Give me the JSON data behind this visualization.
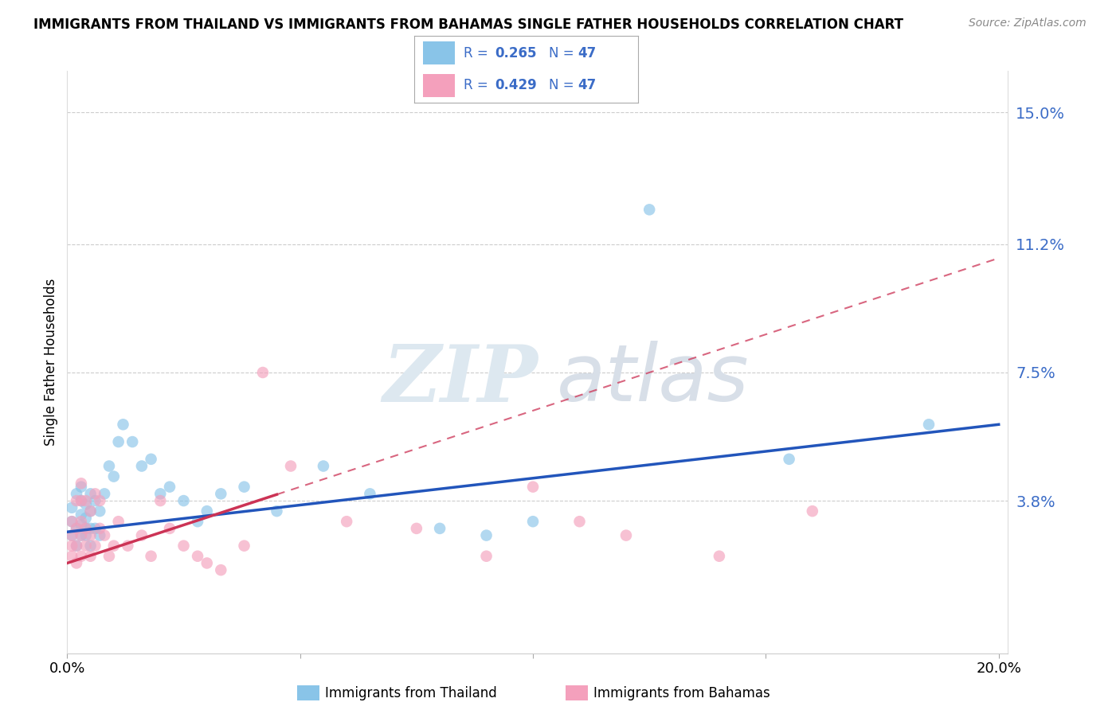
{
  "title": "IMMIGRANTS FROM THAILAND VS IMMIGRANTS FROM BAHAMAS SINGLE FATHER HOUSEHOLDS CORRELATION CHART",
  "source": "Source: ZipAtlas.com",
  "ylabel": "Single Father Households",
  "legend_label1": "Immigrants from Thailand",
  "legend_label2": "Immigrants from Bahamas",
  "R1": "0.265",
  "R2": "0.429",
  "N1": "47",
  "N2": "47",
  "xlim": [
    0.0,
    0.202
  ],
  "ylim": [
    -0.006,
    0.162
  ],
  "yticks": [
    0.038,
    0.075,
    0.112,
    0.15
  ],
  "ytick_labels": [
    "3.8%",
    "7.5%",
    "11.2%",
    "15.0%"
  ],
  "xticks": [
    0.0,
    0.05,
    0.1,
    0.15,
    0.2
  ],
  "xtick_labels": [
    "0.0%",
    "",
    "",
    "",
    "20.0%"
  ],
  "color_thailand": "#89C4E8",
  "color_bahamas": "#F4A0BC",
  "color_line_thailand": "#2255BB",
  "color_line_bahamas": "#CC3355",
  "line_thai_x0": 0.0,
  "line_thai_y0": 0.029,
  "line_thai_x1": 0.2,
  "line_thai_y1": 0.06,
  "line_bah_x0": 0.0,
  "line_bah_y0": 0.02,
  "line_bah_x1": 0.2,
  "line_bah_y1": 0.108,
  "line_bah_solid_end": 0.045,
  "thailand_x": [
    0.001,
    0.001,
    0.001,
    0.002,
    0.002,
    0.002,
    0.003,
    0.003,
    0.003,
    0.003,
    0.003,
    0.004,
    0.004,
    0.004,
    0.004,
    0.005,
    0.005,
    0.005,
    0.005,
    0.006,
    0.006,
    0.007,
    0.007,
    0.008,
    0.009,
    0.01,
    0.011,
    0.012,
    0.014,
    0.016,
    0.018,
    0.02,
    0.022,
    0.025,
    0.028,
    0.03,
    0.033,
    0.038,
    0.045,
    0.055,
    0.065,
    0.08,
    0.09,
    0.1,
    0.125,
    0.155,
    0.185
  ],
  "thailand_y": [
    0.028,
    0.032,
    0.036,
    0.025,
    0.03,
    0.04,
    0.028,
    0.031,
    0.034,
    0.038,
    0.042,
    0.028,
    0.03,
    0.033,
    0.037,
    0.025,
    0.03,
    0.035,
    0.04,
    0.03,
    0.038,
    0.028,
    0.035,
    0.04,
    0.048,
    0.045,
    0.055,
    0.06,
    0.055,
    0.048,
    0.05,
    0.04,
    0.042,
    0.038,
    0.032,
    0.035,
    0.04,
    0.042,
    0.035,
    0.048,
    0.04,
    0.03,
    0.028,
    0.032,
    0.122,
    0.05,
    0.06
  ],
  "bahamas_x": [
    0.001,
    0.001,
    0.001,
    0.001,
    0.002,
    0.002,
    0.002,
    0.002,
    0.003,
    0.003,
    0.003,
    0.003,
    0.003,
    0.004,
    0.004,
    0.004,
    0.005,
    0.005,
    0.005,
    0.006,
    0.006,
    0.007,
    0.007,
    0.008,
    0.009,
    0.01,
    0.011,
    0.013,
    0.016,
    0.018,
    0.02,
    0.022,
    0.025,
    0.028,
    0.03,
    0.033,
    0.038,
    0.042,
    0.048,
    0.06,
    0.075,
    0.09,
    0.1,
    0.11,
    0.12,
    0.14,
    0.16
  ],
  "bahamas_y": [
    0.022,
    0.025,
    0.028,
    0.032,
    0.02,
    0.025,
    0.03,
    0.038,
    0.022,
    0.028,
    0.032,
    0.038,
    0.043,
    0.025,
    0.03,
    0.038,
    0.022,
    0.028,
    0.035,
    0.025,
    0.04,
    0.03,
    0.038,
    0.028,
    0.022,
    0.025,
    0.032,
    0.025,
    0.028,
    0.022,
    0.038,
    0.03,
    0.025,
    0.022,
    0.02,
    0.018,
    0.025,
    0.075,
    0.048,
    0.032,
    0.03,
    0.022,
    0.042,
    0.032,
    0.028,
    0.022,
    0.035
  ]
}
